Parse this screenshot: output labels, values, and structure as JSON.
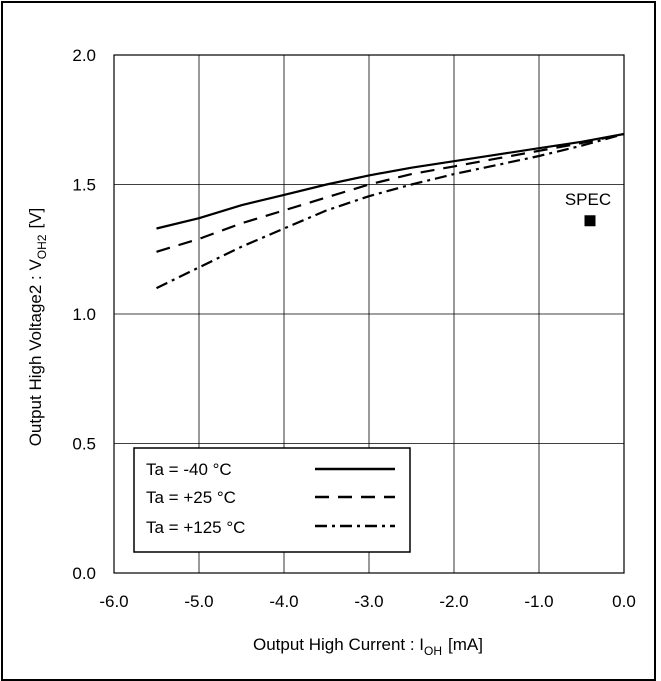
{
  "chart_data": {
    "type": "line",
    "xlabel": "Output High Current : I",
    "xlabel_sub": "OH",
    "xlabel_unit": "[mA]",
    "ylabel": "Output High Voltage2 : V",
    "ylabel_sub": "OH2",
    "ylabel_unit": "[V]",
    "xlim": [
      -6.0,
      0.0
    ],
    "ylim": [
      0.0,
      2.0
    ],
    "xticks": [
      -6.0,
      -5.0,
      -4.0,
      -3.0,
      -2.0,
      -1.0,
      0.0
    ],
    "xtick_labels": [
      "-6.0",
      "-5.0",
      "-4.0",
      "-3.0",
      "-2.0",
      "-1.0",
      "0.0"
    ],
    "yticks": [
      0.0,
      0.5,
      1.0,
      1.5,
      2.0
    ],
    "ytick_labels": [
      "0.0",
      "0.5",
      "1.0",
      "1.5",
      "2.0"
    ],
    "grid": true,
    "legend_position": "bottom-left",
    "series": [
      {
        "name": "Ta = -40 °C",
        "style": "solid",
        "x": [
          -5.5,
          -5.0,
          -4.5,
          -4.0,
          -3.5,
          -3.0,
          -2.5,
          -2.0,
          -1.5,
          -1.0,
          -0.5,
          0.0
        ],
        "y": [
          1.33,
          1.37,
          1.42,
          1.46,
          1.5,
          1.535,
          1.565,
          1.59,
          1.615,
          1.64,
          1.665,
          1.695
        ]
      },
      {
        "name": "Ta = +25 °C",
        "style": "dashed",
        "x": [
          -5.5,
          -5.0,
          -4.5,
          -4.0,
          -3.5,
          -3.0,
          -2.5,
          -2.0,
          -1.5,
          -1.0,
          -0.5,
          0.0
        ],
        "y": [
          1.24,
          1.29,
          1.35,
          1.4,
          1.45,
          1.5,
          1.54,
          1.57,
          1.6,
          1.63,
          1.66,
          1.695
        ]
      },
      {
        "name": "Ta = +125 °C",
        "style": "dashdot",
        "x": [
          -5.5,
          -5.0,
          -4.5,
          -4.0,
          -3.5,
          -3.0,
          -2.5,
          -2.0,
          -1.5,
          -1.0,
          -0.5,
          0.0
        ],
        "y": [
          1.1,
          1.18,
          1.26,
          1.33,
          1.4,
          1.455,
          1.5,
          1.54,
          1.575,
          1.61,
          1.65,
          1.695
        ]
      }
    ],
    "spec_point": {
      "label": "SPEC",
      "x": -0.4,
      "y": 1.36
    }
  },
  "colors": {
    "line": "#000000",
    "grid": "#000000",
    "background": "#ffffff"
  }
}
